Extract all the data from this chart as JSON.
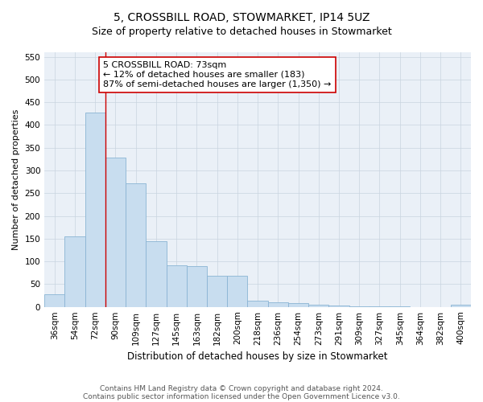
{
  "title": "5, CROSSBILL ROAD, STOWMARKET, IP14 5UZ",
  "subtitle": "Size of property relative to detached houses in Stowmarket",
  "xlabel": "Distribution of detached houses by size in Stowmarket",
  "ylabel": "Number of detached properties",
  "categories": [
    "36sqm",
    "54sqm",
    "72sqm",
    "90sqm",
    "109sqm",
    "127sqm",
    "145sqm",
    "163sqm",
    "182sqm",
    "200sqm",
    "218sqm",
    "236sqm",
    "254sqm",
    "273sqm",
    "291sqm",
    "309sqm",
    "327sqm",
    "345sqm",
    "364sqm",
    "382sqm",
    "400sqm"
  ],
  "values": [
    27,
    155,
    428,
    328,
    272,
    145,
    92,
    90,
    68,
    68,
    13,
    10,
    8,
    4,
    3,
    1,
    1,
    1,
    0,
    0,
    4
  ],
  "bar_color": "#c8ddef",
  "bar_edge_color": "#8ab4d4",
  "vline_x_index": 2,
  "vline_color": "#cc0000",
  "annotation_text": "5 CROSSBILL ROAD: 73sqm\n← 12% of detached houses are smaller (183)\n87% of semi-detached houses are larger (1,350) →",
  "annotation_box_color": "#ffffff",
  "annotation_box_edge_color": "#cc0000",
  "ylim": [
    0,
    560
  ],
  "yticks": [
    0,
    50,
    100,
    150,
    200,
    250,
    300,
    350,
    400,
    450,
    500,
    550
  ],
  "title_fontsize": 10,
  "subtitle_fontsize": 9,
  "xlabel_fontsize": 8.5,
  "ylabel_fontsize": 8,
  "tick_fontsize": 7.5,
  "annotation_fontsize": 8,
  "footer_line1": "Contains HM Land Registry data © Crown copyright and database right 2024.",
  "footer_line2": "Contains public sector information licensed under the Open Government Licence v3.0.",
  "footer_fontsize": 6.5,
  "background_color": "#ffffff",
  "plot_background_color": "#eaf0f7"
}
